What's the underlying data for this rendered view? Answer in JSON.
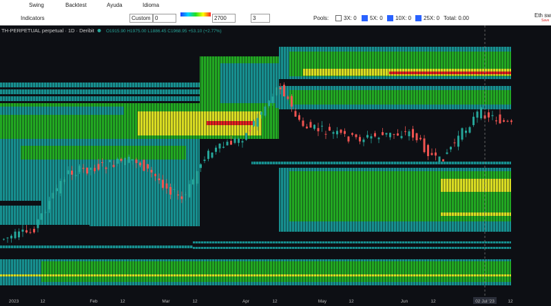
{
  "menu": {
    "items": [
      "Swing",
      "Backtest",
      "Ayuda",
      "Idioma"
    ]
  },
  "toolbar": {
    "indicators": "Indicators",
    "preset": "Custom",
    "offset": "0",
    "max": "2700",
    "levels": "3",
    "pools": "Pools:",
    "checks": [
      "3X: 0",
      "5X: 0",
      "10X: 0",
      "25X: 0"
    ],
    "total": "Total: 0.00",
    "profile": "Eth swi",
    "save": "Save"
  },
  "chart": {
    "symbol": "TH-PERPETUAL perpetual · 1D · Deribit",
    "ohlc": "O1915.90 H1975.00 L1886.45 C1968.95 +53.10 (+2.77%)",
    "time_axis": [
      "2023",
      "12",
      "Feb",
      "12",
      "Mar",
      "12",
      "Apr",
      "12",
      "May",
      "12",
      "Jun",
      "12",
      "02 Jul '23",
      "12"
    ]
  }
}
